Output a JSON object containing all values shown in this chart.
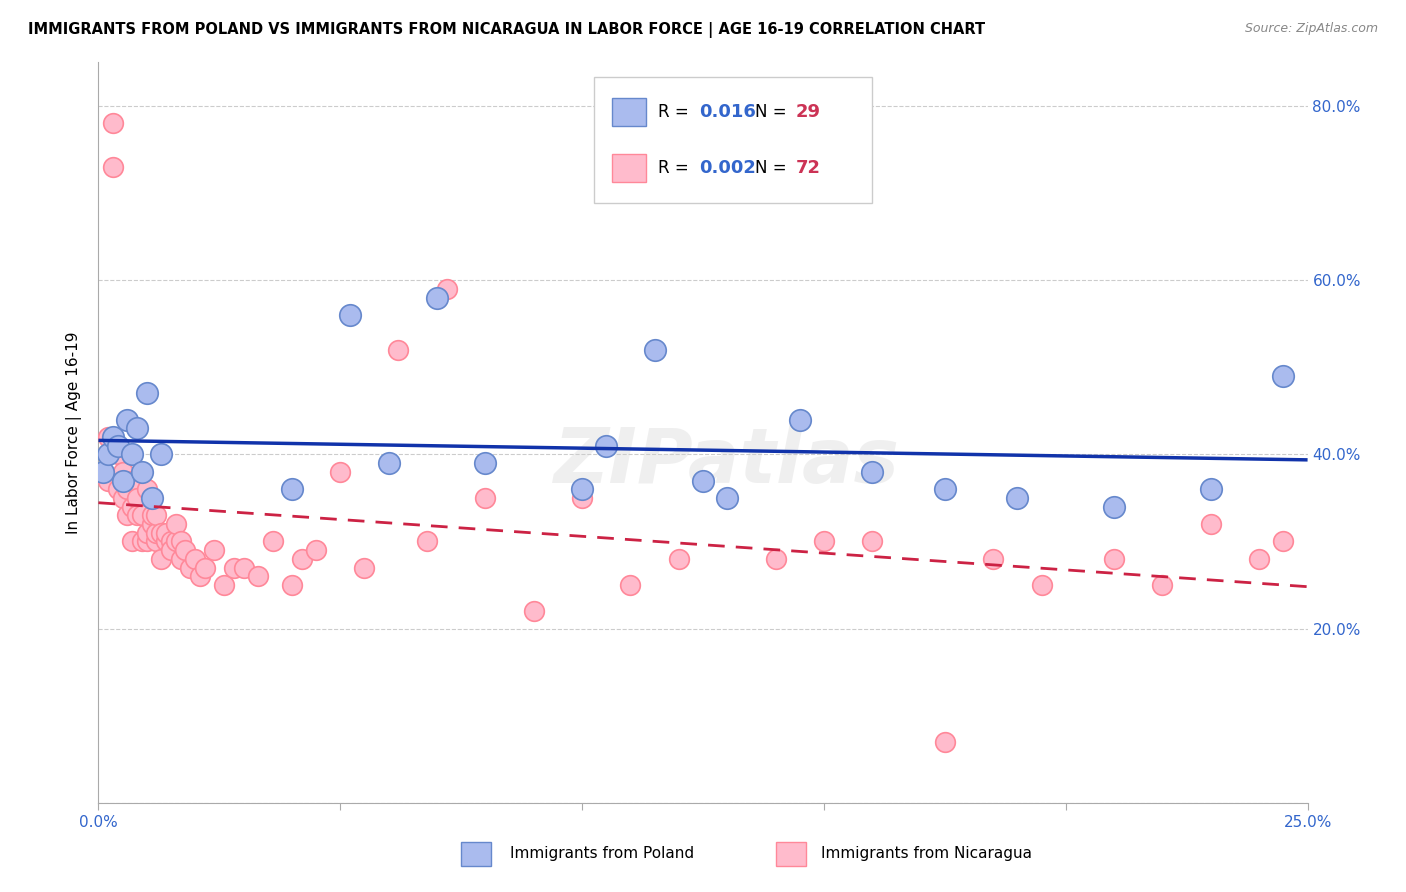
{
  "title": "IMMIGRANTS FROM POLAND VS IMMIGRANTS FROM NICARAGUA IN LABOR FORCE | AGE 16-19 CORRELATION CHART",
  "source": "Source: ZipAtlas.com",
  "ylabel_label": "In Labor Force | Age 16-19",
  "xlim": [
    0.0,
    0.25
  ],
  "ylim": [
    0.0,
    0.85
  ],
  "xticks": [
    0.0,
    0.05,
    0.1,
    0.15,
    0.2,
    0.25
  ],
  "yticks": [
    0.0,
    0.2,
    0.4,
    0.6,
    0.8
  ],
  "xtick_labels": [
    "0.0%",
    "",
    "",
    "",
    "",
    "25.0%"
  ],
  "ytick_labels": [
    "",
    "20.0%",
    "40.0%",
    "60.0%",
    "80.0%"
  ],
  "background_color": "#ffffff",
  "grid_color": "#cccccc",
  "watermark": "ZIPatlas",
  "poland_color_fill": "#aabbee",
  "poland_color_edge": "#6688cc",
  "nicaragua_color_fill": "#ffbbcc",
  "nicaragua_color_edge": "#ff8899",
  "poland_R": 0.016,
  "poland_N": 29,
  "nicaragua_R": 0.002,
  "nicaragua_N": 72,
  "poland_line_color": "#1133aa",
  "nicaragua_line_color": "#cc2244",
  "legend_R_color": "#3366cc",
  "legend_N_color": "#cc3355",
  "poland_x": [
    0.001,
    0.002,
    0.003,
    0.004,
    0.005,
    0.006,
    0.007,
    0.008,
    0.009,
    0.01,
    0.011,
    0.013,
    0.04,
    0.052,
    0.06,
    0.07,
    0.08,
    0.1,
    0.105,
    0.115,
    0.125,
    0.13,
    0.145,
    0.16,
    0.175,
    0.19,
    0.21,
    0.23,
    0.245
  ],
  "poland_y": [
    0.38,
    0.4,
    0.42,
    0.41,
    0.37,
    0.44,
    0.4,
    0.43,
    0.38,
    0.47,
    0.35,
    0.4,
    0.36,
    0.56,
    0.39,
    0.58,
    0.39,
    0.36,
    0.41,
    0.52,
    0.37,
    0.35,
    0.44,
    0.38,
    0.36,
    0.35,
    0.34,
    0.36,
    0.49
  ],
  "nicaragua_x": [
    0.001,
    0.002,
    0.002,
    0.003,
    0.003,
    0.004,
    0.004,
    0.005,
    0.005,
    0.006,
    0.006,
    0.007,
    0.007,
    0.007,
    0.008,
    0.008,
    0.009,
    0.009,
    0.01,
    0.01,
    0.01,
    0.011,
    0.011,
    0.012,
    0.012,
    0.012,
    0.013,
    0.013,
    0.014,
    0.014,
    0.015,
    0.015,
    0.016,
    0.016,
    0.017,
    0.017,
    0.018,
    0.019,
    0.02,
    0.021,
    0.022,
    0.024,
    0.026,
    0.028,
    0.03,
    0.033,
    0.036,
    0.04,
    0.042,
    0.045,
    0.05,
    0.055,
    0.062,
    0.068,
    0.072,
    0.08,
    0.09,
    0.1,
    0.11,
    0.12,
    0.13,
    0.14,
    0.15,
    0.16,
    0.175,
    0.185,
    0.195,
    0.21,
    0.22,
    0.23,
    0.24,
    0.245
  ],
  "nicaragua_y": [
    0.38,
    0.42,
    0.37,
    0.78,
    0.73,
    0.4,
    0.36,
    0.35,
    0.38,
    0.33,
    0.36,
    0.3,
    0.34,
    0.37,
    0.35,
    0.33,
    0.3,
    0.33,
    0.3,
    0.31,
    0.36,
    0.32,
    0.33,
    0.3,
    0.31,
    0.33,
    0.28,
    0.31,
    0.3,
    0.31,
    0.3,
    0.29,
    0.3,
    0.32,
    0.28,
    0.3,
    0.29,
    0.27,
    0.28,
    0.26,
    0.27,
    0.29,
    0.25,
    0.27,
    0.27,
    0.26,
    0.3,
    0.25,
    0.28,
    0.29,
    0.38,
    0.27,
    0.52,
    0.3,
    0.59,
    0.35,
    0.22,
    0.35,
    0.25,
    0.28,
    0.35,
    0.28,
    0.3,
    0.3,
    0.07,
    0.28,
    0.25,
    0.28,
    0.25,
    0.32,
    0.28,
    0.3
  ]
}
